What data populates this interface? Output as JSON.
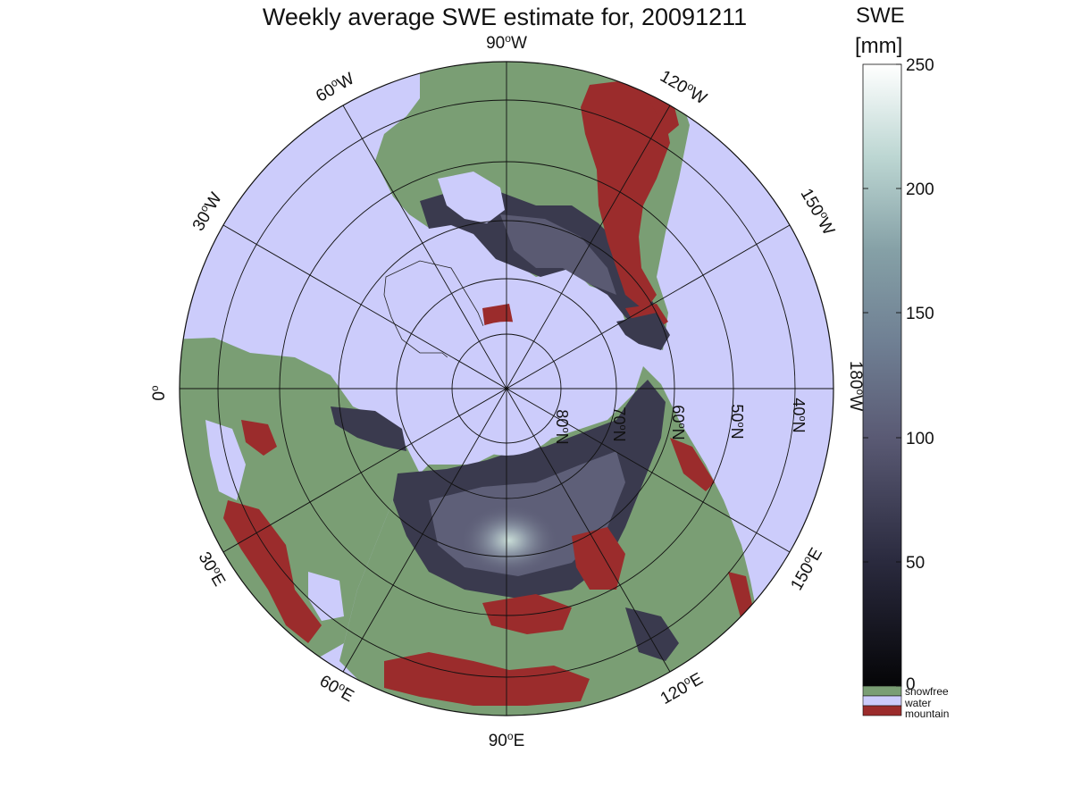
{
  "title": "Weekly average SWE estimate for, 20091211",
  "colorbar": {
    "title": "SWE",
    "unit": "[mm]",
    "ticks": [
      "0",
      "50",
      "100",
      "150",
      "200",
      "250"
    ],
    "range": [
      0,
      250
    ],
    "categories": [
      {
        "label": "snowfree",
        "color": "#7a9e74"
      },
      {
        "label": "water",
        "color": "#ccccfb"
      },
      {
        "label": "mountain",
        "color": "#9b2c2c"
      }
    ]
  },
  "map": {
    "projection": "north-polar-stereographic",
    "meridian_labels": {
      "m90w": {
        "num": "90",
        "deg": "o",
        "dir": "W"
      },
      "m60w": {
        "num": "60",
        "deg": "o",
        "dir": "W"
      },
      "m30w": {
        "num": "30",
        "deg": "o",
        "dir": "W"
      },
      "m0": {
        "num": "0",
        "deg": "o",
        "dir": ""
      },
      "m30e": {
        "num": "30",
        "deg": "o",
        "dir": "E"
      },
      "m60e": {
        "num": "60",
        "deg": "o",
        "dir": "E"
      },
      "m90e": {
        "num": "90",
        "deg": "o",
        "dir": "E"
      },
      "m120e": {
        "num": "120",
        "deg": "o",
        "dir": "E"
      },
      "m150e": {
        "num": "150",
        "deg": "o",
        "dir": "E"
      },
      "m180w": {
        "num": "180",
        "deg": "o",
        "dir": "W"
      },
      "m150w": {
        "num": "150",
        "deg": "o",
        "dir": "W"
      },
      "m120w": {
        "num": "120",
        "deg": "o",
        "dir": "W"
      }
    },
    "parallel_labels": {
      "p80": {
        "num": "80",
        "deg": "o",
        "dir": "N"
      },
      "p70": {
        "num": "70",
        "deg": "o",
        "dir": "N"
      },
      "p60": {
        "num": "60",
        "deg": "o",
        "dir": "N"
      },
      "p50": {
        "num": "50",
        "deg": "o",
        "dir": "N"
      },
      "p40": {
        "num": "40",
        "deg": "o",
        "dir": "N"
      }
    }
  }
}
